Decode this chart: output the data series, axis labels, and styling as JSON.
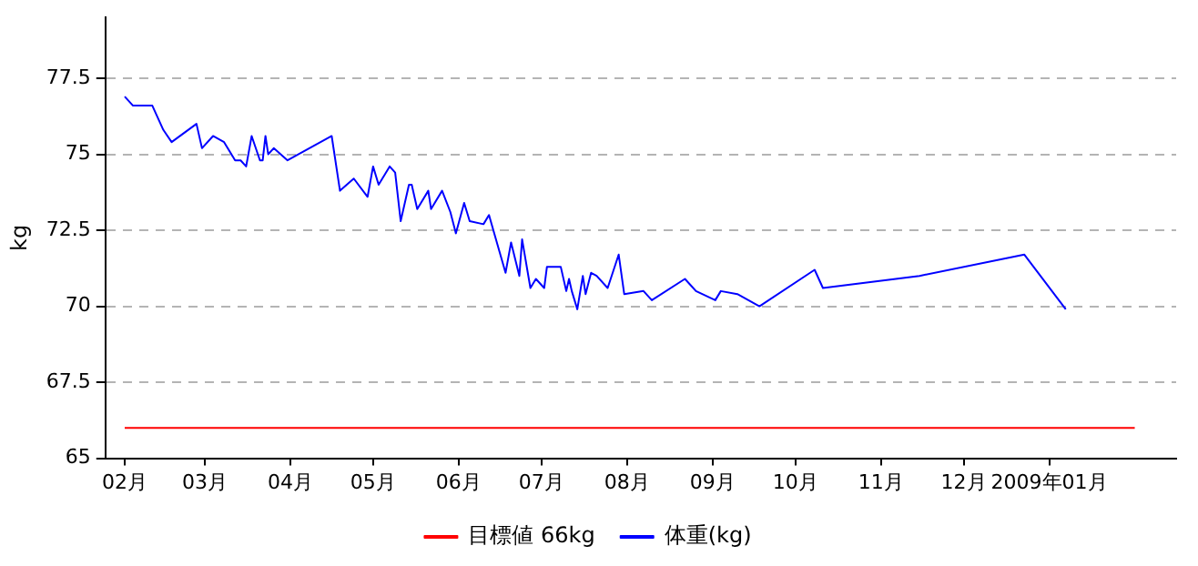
{
  "chart_data": {
    "type": "line",
    "ylabel": "kg",
    "ylim": [
      65,
      79.5
    ],
    "yticks": [
      65,
      67.5,
      70,
      72.5,
      75,
      77.5
    ],
    "xlim": [
      "2008-01-25",
      "2009-02-16"
    ],
    "xticks": [
      {
        "value": "2008-02-01",
        "label": "02月"
      },
      {
        "value": "2008-03-01",
        "label": "03月"
      },
      {
        "value": "2008-04-01",
        "label": "04月"
      },
      {
        "value": "2008-05-01",
        "label": "05月"
      },
      {
        "value": "2008-06-01",
        "label": "06月"
      },
      {
        "value": "2008-07-01",
        "label": "07月"
      },
      {
        "value": "2008-08-01",
        "label": "08月"
      },
      {
        "value": "2008-09-01",
        "label": "09月"
      },
      {
        "value": "2008-10-01",
        "label": "10月"
      },
      {
        "value": "2008-11-01",
        "label": "11月"
      },
      {
        "value": "2008-12-01",
        "label": "12月"
      },
      {
        "value": "2009-01-01",
        "label": "2009年01月"
      }
    ],
    "grid": "y",
    "legend": "bottom",
    "marker": "none",
    "line_style": "solid",
    "series": [
      {
        "name": "目標値 66kg",
        "color": "#ff0000",
        "x": [
          "2008-02-01",
          "2009-02-01"
        ],
        "values": [
          66,
          66
        ]
      },
      {
        "name": "体重(kg)",
        "color": "#0000ff",
        "x": [
          "2008-02-01",
          "2008-02-04",
          "2008-02-11",
          "2008-02-15",
          "2008-02-18",
          "2008-02-27",
          "2008-02-29",
          "2008-03-04",
          "2008-03-08",
          "2008-03-12",
          "2008-03-14",
          "2008-03-16",
          "2008-03-18",
          "2008-03-21",
          "2008-03-22",
          "2008-03-23",
          "2008-03-24",
          "2008-03-26",
          "2008-03-31",
          "2008-04-16",
          "2008-04-19",
          "2008-04-24",
          "2008-04-29",
          "2008-05-01",
          "2008-05-03",
          "2008-05-07",
          "2008-05-09",
          "2008-05-11",
          "2008-05-14",
          "2008-05-15",
          "2008-05-17",
          "2008-05-21",
          "2008-05-22",
          "2008-05-26",
          "2008-05-29",
          "2008-05-31",
          "2008-06-03",
          "2008-06-05",
          "2008-06-10",
          "2008-06-12",
          "2008-06-18",
          "2008-06-20",
          "2008-06-23",
          "2008-06-24",
          "2008-06-27",
          "2008-06-29",
          "2008-07-02",
          "2008-07-03",
          "2008-07-08",
          "2008-07-10",
          "2008-07-11",
          "2008-07-12",
          "2008-07-14",
          "2008-07-16",
          "2008-07-17",
          "2008-07-19",
          "2008-07-21",
          "2008-07-25",
          "2008-07-29",
          "2008-07-31",
          "2008-08-07",
          "2008-08-10",
          "2008-08-22",
          "2008-08-26",
          "2008-09-02",
          "2008-09-04",
          "2008-09-10",
          "2008-09-18",
          "2008-10-08",
          "2008-10-11",
          "2008-11-15",
          "2008-12-23",
          "2009-01-07"
        ],
        "values": [
          76.9,
          76.6,
          76.6,
          75.8,
          75.4,
          76.0,
          75.2,
          75.6,
          75.4,
          74.8,
          74.8,
          74.6,
          75.6,
          74.8,
          74.8,
          75.6,
          75.0,
          75.2,
          74.8,
          75.6,
          73.8,
          74.2,
          73.6,
          74.6,
          74.0,
          74.6,
          74.4,
          72.8,
          74.0,
          74.0,
          73.2,
          73.8,
          73.2,
          73.8,
          73.1,
          72.4,
          73.4,
          72.8,
          72.7,
          73.0,
          71.1,
          72.1,
          71.0,
          72.2,
          70.6,
          70.9,
          70.6,
          71.3,
          71.3,
          70.5,
          70.9,
          70.5,
          69.9,
          71.0,
          70.4,
          71.1,
          71.0,
          70.6,
          71.7,
          70.4,
          70.5,
          70.2,
          70.9,
          70.5,
          70.2,
          70.5,
          70.4,
          70.0,
          71.2,
          70.6,
          71.0,
          71.7,
          69.9
        ]
      }
    ]
  }
}
